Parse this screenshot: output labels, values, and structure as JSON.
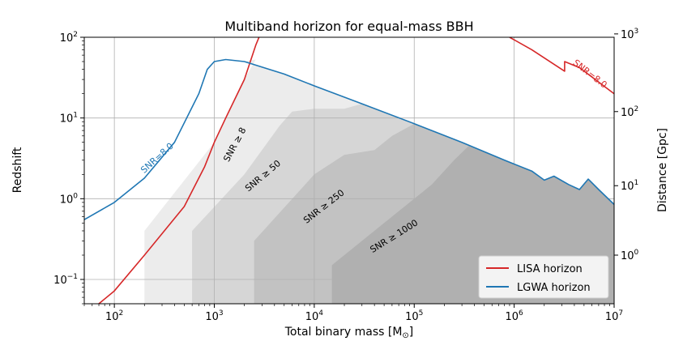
{
  "chart_data": {
    "type": "line",
    "title": "Multiband horizon for equal-mass BBH",
    "xlabel": "Total binary mass [M",
    "xlabel_sub": "⊙",
    "xlabel_close": "]",
    "ylabel": "Redshift",
    "y2label": "Distance [Gpc]",
    "xscale": "log",
    "yscale": "log",
    "xlim": [
      50,
      10000000
    ],
    "ylim": [
      0.05,
      100
    ],
    "x_ticks": [
      {
        "value": 100,
        "base": "10",
        "exp": "2"
      },
      {
        "value": 1000,
        "base": "10",
        "exp": "3"
      },
      {
        "value": 10000,
        "base": "10",
        "exp": "4"
      },
      {
        "value": 100000,
        "base": "10",
        "exp": "5"
      },
      {
        "value": 1000000,
        "base": "10",
        "exp": "6"
      },
      {
        "value": 10000000,
        "base": "10",
        "exp": "7"
      }
    ],
    "y_ticks": [
      {
        "value": 0.1,
        "base": "10",
        "exp": "−1"
      },
      {
        "value": 1,
        "base": "10",
        "exp": "0"
      },
      {
        "value": 10,
        "base": "10",
        "exp": "1"
      },
      {
        "value": 100,
        "base": "10",
        "exp": "2"
      }
    ],
    "y2_ticks": [
      {
        "z": 0.2,
        "base": "10",
        "exp": "0"
      },
      {
        "z": 1.45,
        "base": "10",
        "exp": "1"
      },
      {
        "z": 12,
        "base": "10",
        "exp": "2"
      },
      {
        "z": 110,
        "base": "10",
        "exp": "3"
      }
    ],
    "grid": true,
    "legend_position": "bottom-right",
    "series": [
      {
        "name": "LISA horizon",
        "color": "#d62728",
        "segments": [
          [
            [
              70,
              0.05
            ],
            [
              100,
              0.072
            ],
            [
              200,
              0.2
            ],
            [
              500,
              0.8
            ],
            [
              800,
              2.5
            ],
            [
              1000,
              5
            ],
            [
              1300,
              10
            ],
            [
              2000,
              30
            ],
            [
              2600,
              80
            ],
            [
              2800,
              100
            ]
          ],
          [
            [
              900000,
              100
            ],
            [
              1500000,
              70
            ],
            [
              3200000,
              38
            ],
            [
              3200000,
              50
            ],
            [
              4500000,
              42
            ],
            [
              10000000,
              20
            ]
          ]
        ],
        "annotation": "SNR=8.0"
      },
      {
        "name": "LGWA horizon",
        "color": "#1f77b4",
        "segments": [
          [
            [
              50,
              0.55
            ],
            [
              100,
              0.9
            ],
            [
              200,
              1.8
            ],
            [
              400,
              5
            ],
            [
              700,
              20
            ],
            [
              850,
              40
            ],
            [
              1000,
              50
            ],
            [
              1300,
              53
            ],
            [
              2000,
              50
            ],
            [
              5000,
              35
            ],
            [
              10000,
              25
            ],
            [
              30000,
              15
            ],
            [
              100000,
              8.5
            ],
            [
              300000,
              5
            ],
            [
              800000,
              3
            ],
            [
              1500000,
              2.2
            ],
            [
              2000000,
              1.7
            ],
            [
              2500000,
              1.9
            ],
            [
              3500000,
              1.5
            ],
            [
              4500000,
              1.3
            ],
            [
              5500000,
              1.75
            ],
            [
              7000000,
              1.3
            ],
            [
              10000000,
              0.85
            ]
          ]
        ],
        "annotation": "SNR=8.0"
      }
    ],
    "regions": [
      {
        "label": "SNR ≥ 8",
        "color": "#ececec",
        "opacity": 1,
        "points": [
          [
            200,
            0.05
          ],
          [
            200,
            0.4
          ],
          [
            1000,
            5
          ],
          [
            1300,
            10
          ],
          [
            2000,
            30
          ],
          [
            2600,
            53
          ],
          [
            2000,
            50
          ],
          [
            5000,
            35
          ],
          [
            10000,
            25
          ],
          [
            30000,
            15
          ],
          [
            100000,
            8.5
          ],
          [
            300000,
            5
          ],
          [
            800000,
            3
          ],
          [
            1500000,
            2.2
          ],
          [
            2000000,
            1.7
          ],
          [
            2500000,
            1.9
          ],
          [
            3500000,
            1.5
          ],
          [
            4500000,
            1.3
          ],
          [
            5500000,
            1.75
          ],
          [
            7000000,
            1.3
          ],
          [
            10000000,
            0.85
          ],
          [
            10000000,
            0.05
          ]
        ]
      },
      {
        "label": "SNR ≥ 50",
        "color": "#000000",
        "opacity": 0.09,
        "points": [
          [
            600,
            0.05
          ],
          [
            600,
            0.4
          ],
          [
            2000,
            2
          ],
          [
            4500,
            8
          ],
          [
            6000,
            12
          ],
          [
            10000,
            13
          ],
          [
            20000,
            13
          ],
          [
            30000,
            15
          ],
          [
            100000,
            8.5
          ],
          [
            300000,
            5
          ],
          [
            800000,
            3
          ],
          [
            1500000,
            2.2
          ],
          [
            2000000,
            1.7
          ],
          [
            2500000,
            1.9
          ],
          [
            3500000,
            1.5
          ],
          [
            4500000,
            1.3
          ],
          [
            5500000,
            1.75
          ],
          [
            7000000,
            1.3
          ],
          [
            10000000,
            0.85
          ],
          [
            10000000,
            0.05
          ]
        ]
      },
      {
        "label": "SNR ≥ 250",
        "color": "#000000",
        "opacity": 0.09,
        "points": [
          [
            2500,
            0.05
          ],
          [
            2500,
            0.3
          ],
          [
            10000,
            2
          ],
          [
            20000,
            3.5
          ],
          [
            40000,
            4
          ],
          [
            60000,
            6
          ],
          [
            100000,
            8.5
          ],
          [
            300000,
            5
          ],
          [
            800000,
            3
          ],
          [
            1500000,
            2.2
          ],
          [
            2000000,
            1.7
          ],
          [
            2500000,
            1.9
          ],
          [
            3500000,
            1.5
          ],
          [
            4500000,
            1.3
          ],
          [
            5500000,
            1.75
          ],
          [
            7000000,
            1.3
          ],
          [
            10000000,
            0.85
          ],
          [
            10000000,
            0.05
          ]
        ]
      },
      {
        "label": "SNR ≥ 1000",
        "color": "#000000",
        "opacity": 0.09,
        "points": [
          [
            15000,
            0.05
          ],
          [
            15000,
            0.15
          ],
          [
            50000,
            0.5
          ],
          [
            150000,
            1.5
          ],
          [
            250000,
            3
          ],
          [
            350000,
            4.5
          ],
          [
            800000,
            3
          ],
          [
            1500000,
            2.2
          ],
          [
            2000000,
            1.7
          ],
          [
            2500000,
            1.9
          ],
          [
            3500000,
            1.5
          ],
          [
            4500000,
            1.3
          ],
          [
            5500000,
            1.75
          ],
          [
            7000000,
            1.3
          ],
          [
            10000000,
            0.85
          ],
          [
            10000000,
            0.05
          ]
        ]
      }
    ],
    "annotations": [
      {
        "text": "SNR ≥ 8",
        "x": 1700,
        "y": 4.5,
        "angle": -62,
        "color": "#000000"
      },
      {
        "text": "SNR ≥ 50",
        "x": 3200,
        "y": 1.8,
        "angle": -40,
        "color": "#000000"
      },
      {
        "text": "SNR ≥ 250",
        "x": 13000,
        "y": 0.75,
        "angle": -38,
        "color": "#000000"
      },
      {
        "text": "SNR ≥ 1000",
        "x": 65000,
        "y": 0.32,
        "angle": -32,
        "color": "#000000"
      },
      {
        "text": "SNR=8.0",
        "x": 280,
        "y": 3,
        "angle": -42,
        "color": "#1f77b4"
      },
      {
        "text": "SNR=8.0",
        "x": 5500000,
        "y": 33,
        "angle": 38,
        "color": "#d62728"
      }
    ]
  }
}
